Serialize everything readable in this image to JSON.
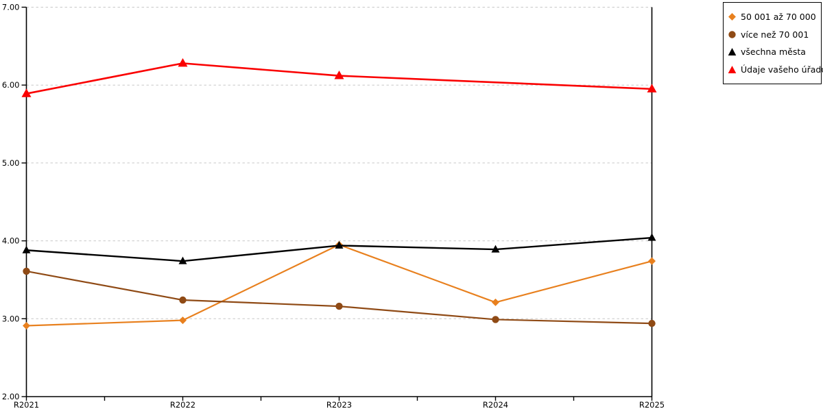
{
  "chart_data": {
    "type": "line",
    "title": "",
    "xlabel": "",
    "ylabel": "",
    "categories": [
      "R2021",
      "R2022",
      "R2023",
      "R2024",
      "R2025"
    ],
    "series": [
      {
        "name": "50 001 až 70 000",
        "marker": "diamond",
        "color": "#E8801E",
        "values": [
          2.91,
          2.98,
          3.95,
          3.21,
          3.74
        ]
      },
      {
        "name": "více než 70 001",
        "marker": "circle",
        "color": "#8F4A15",
        "values": [
          3.61,
          3.24,
          3.16,
          2.99,
          2.94
        ]
      },
      {
        "name": "všechna města",
        "marker": "triangle",
        "color": "#000000",
        "values": [
          3.88,
          3.74,
          3.94,
          3.89,
          4.04
        ]
      },
      {
        "name": "Údaje vašeho úřadu",
        "marker": "triangle",
        "color": "#FA0000",
        "values": [
          5.89,
          6.28,
          6.12,
          null,
          5.95
        ]
      }
    ],
    "ylim": [
      2,
      7
    ],
    "y_ticks": [
      "7.00",
      "6.00",
      "5.00",
      "4.00",
      "3.00",
      "2.00"
    ],
    "y_tick_values": [
      7,
      6,
      5,
      4,
      3,
      2
    ],
    "grid": "horizontal-dashed",
    "legend_position": "top-right"
  },
  "style_colors": {
    "grid": "#C8C8C8",
    "axis": "#000000",
    "background": "#FFFFFF"
  }
}
